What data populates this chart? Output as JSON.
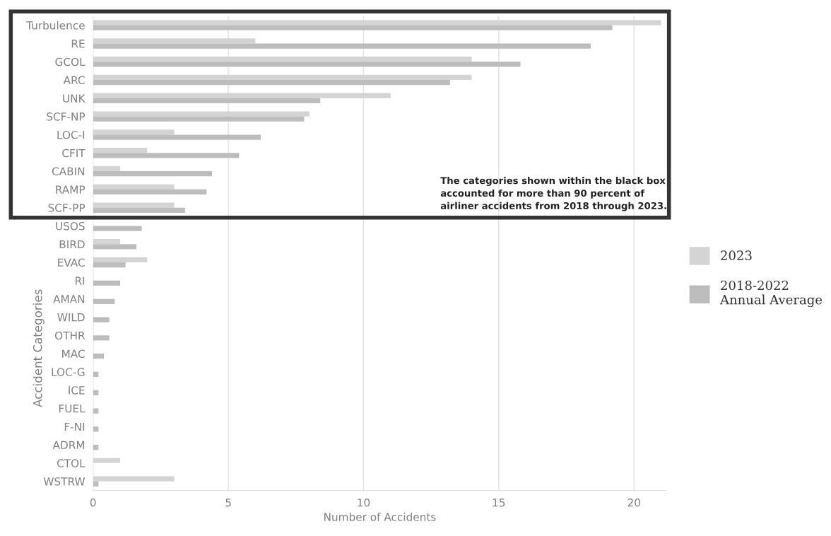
{
  "chart_data": {
    "type": "bar",
    "orientation": "horizontal",
    "xlabel": "Number of Accidents",
    "ylabel": "Accident Categories",
    "categories": [
      "Turbulence",
      "RE",
      "GCOL",
      "ARC",
      "UNK",
      "SCF-NP",
      "LOC-I",
      "CFIT",
      "CABIN",
      "RAMP",
      "SCF-PP",
      "USOS",
      "BIRD",
      "EVAC",
      "RI",
      "AMAN",
      "WILD",
      "OTHR",
      "MAC",
      "LOC-G",
      "ICE",
      "FUEL",
      "F-NI",
      "ADRM",
      "CTOL",
      "WSTRW"
    ],
    "series": [
      {
        "name": "2023",
        "color": "#d4d4d4",
        "values": [
          21.0,
          6.0,
          14.0,
          14.0,
          11.0,
          8.0,
          3.0,
          2.0,
          1.0,
          3.0,
          3.0,
          0,
          1.0,
          2.0,
          0,
          0,
          0,
          0,
          0,
          0,
          0,
          0,
          0,
          0,
          1.0,
          3.0
        ]
      },
      {
        "name": "2018-2022\nAnnual Average",
        "color": "#bdbdbd",
        "values": [
          19.2,
          18.4,
          15.8,
          13.2,
          8.4,
          7.8,
          6.2,
          5.4,
          4.4,
          4.2,
          3.4,
          1.8,
          1.6,
          1.2,
          1.0,
          0.8,
          0.6,
          0.6,
          0.4,
          0.2,
          0.2,
          0.2,
          0.2,
          0.2,
          0,
          0.2
        ]
      }
    ],
    "xlim": [
      0,
      21.2
    ],
    "xticks": [
      0,
      5,
      10,
      15,
      20
    ],
    "grid": "x",
    "legend": "right",
    "annotations": [
      "The categories shown within the black box\naccounted for more than 90 percent of\nairliner accidents from 2018 through 2023."
    ]
  }
}
